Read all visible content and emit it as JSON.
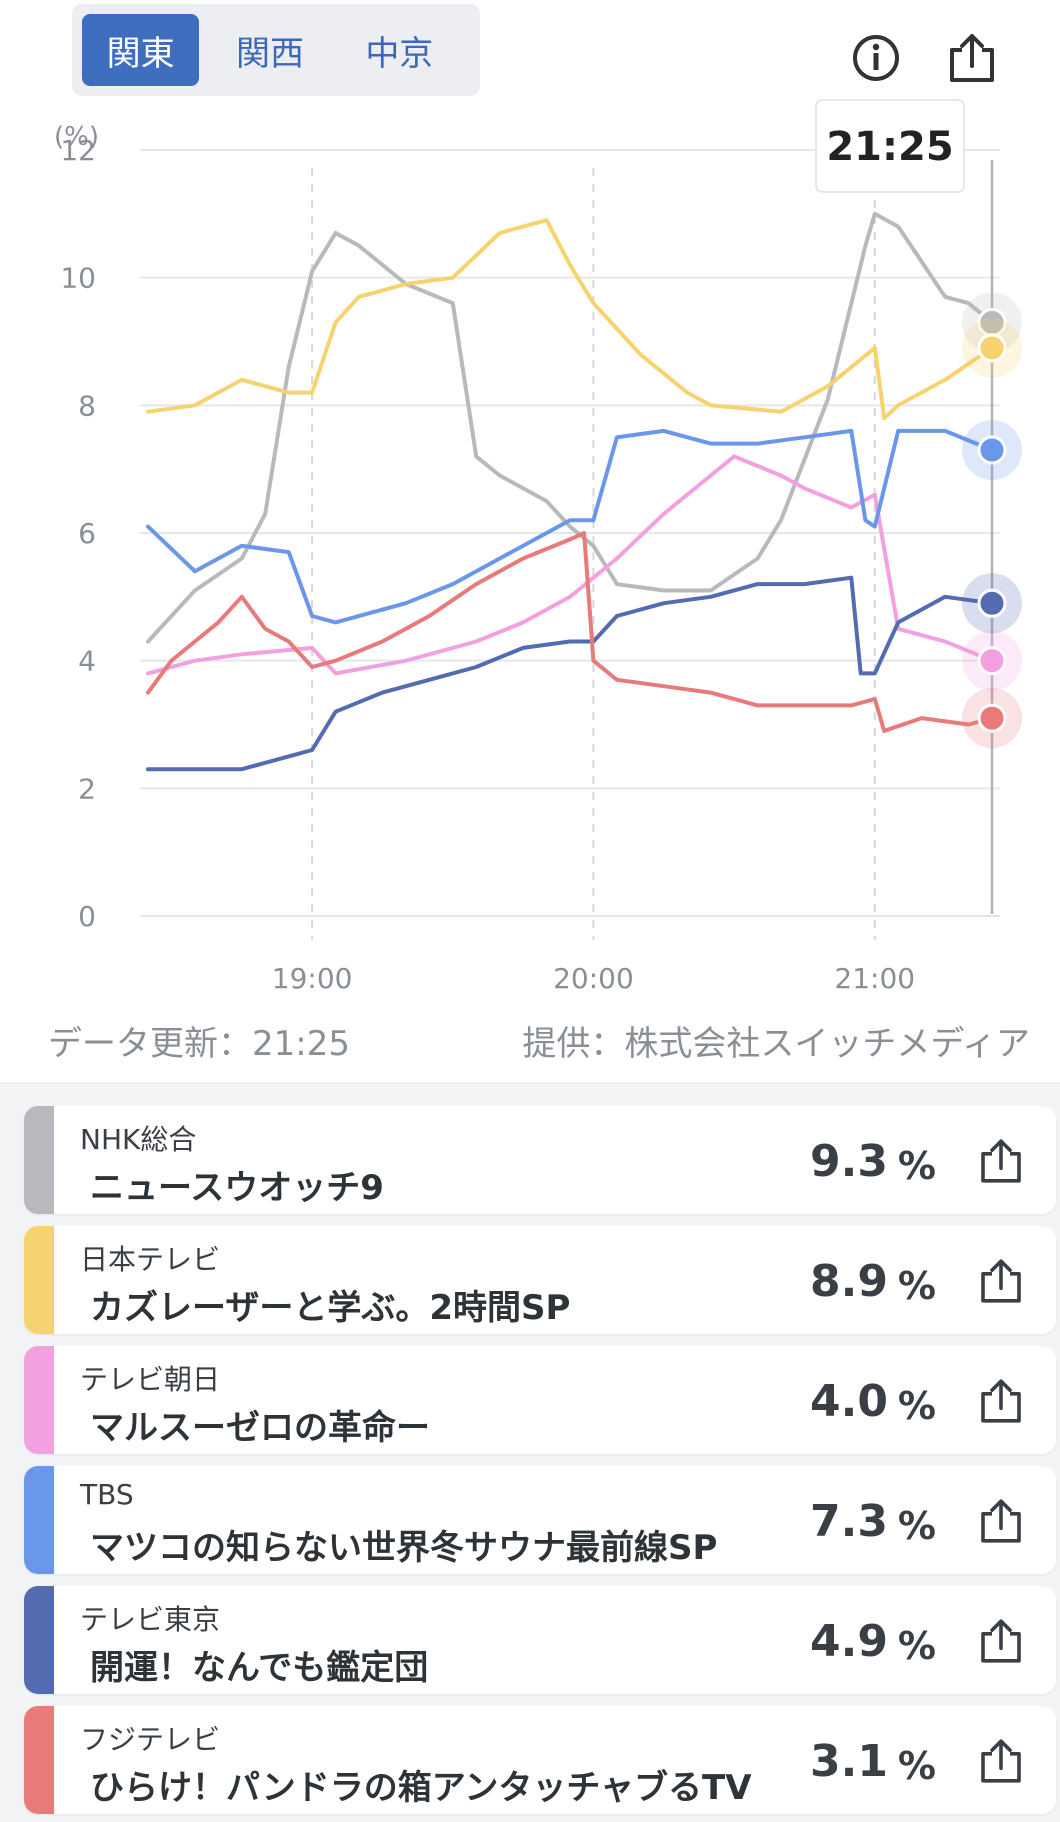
{
  "region_tabs": [
    {
      "label": "関東",
      "active": true
    },
    {
      "label": "関西",
      "active": false
    },
    {
      "label": "中京",
      "active": false
    }
  ],
  "icons": {
    "info": "info-icon",
    "share": "share-icon"
  },
  "tooltip_time": "21:25",
  "meta": {
    "updated": "データ更新：21:25",
    "provider": "提供：株式会社スイッチメディア"
  },
  "chart_data": {
    "type": "line",
    "yunit": "(%)",
    "ylim": [
      0,
      12
    ],
    "yticks": [
      "0",
      "2",
      "4",
      "6",
      "8",
      "10",
      "12"
    ],
    "xlim": [
      "18:25",
      "21:25"
    ],
    "xticks": [
      "19:00",
      "20:00",
      "21:00"
    ],
    "grid": true,
    "series": [
      {
        "color": "#b7b9bd",
        "x": [
          "18:25",
          "18:35",
          "18:45",
          "18:50",
          "18:55",
          "19:00",
          "19:05",
          "19:10",
          "19:20",
          "19:30",
          "19:35",
          "19:40",
          "19:50",
          "19:55",
          "20:00",
          "20:05",
          "20:15",
          "20:25",
          "20:35",
          "20:40",
          "20:50",
          "20:58",
          "21:00",
          "21:05",
          "21:15",
          "21:20",
          "21:25"
        ],
        "y": [
          4.3,
          5.1,
          5.6,
          6.3,
          8.6,
          10.1,
          10.7,
          10.5,
          9.9,
          9.6,
          7.2,
          6.9,
          6.5,
          6.1,
          5.8,
          5.2,
          5.1,
          5.1,
          5.6,
          6.2,
          8.1,
          10.5,
          11.0,
          10.8,
          9.7,
          9.6,
          9.3
        ]
      },
      {
        "color": "#f7d36f",
        "x": [
          "18:25",
          "18:35",
          "18:45",
          "18:55",
          "19:00",
          "19:05",
          "19:10",
          "19:20",
          "19:30",
          "19:40",
          "19:50",
          "19:55",
          "20:00",
          "20:10",
          "20:20",
          "20:25",
          "20:40",
          "20:50",
          "21:00",
          "21:02",
          "21:05",
          "21:15",
          "21:25"
        ],
        "y": [
          7.9,
          8.0,
          8.4,
          8.2,
          8.2,
          9.3,
          9.7,
          9.9,
          10.0,
          10.7,
          10.9,
          10.2,
          9.6,
          8.8,
          8.2,
          8.0,
          7.9,
          8.3,
          8.9,
          7.8,
          8.0,
          8.4,
          8.9
        ]
      },
      {
        "color": "#f2a0df",
        "x": [
          "18:25",
          "18:35",
          "18:45",
          "19:00",
          "19:05",
          "19:20",
          "19:35",
          "19:45",
          "19:55",
          "20:00",
          "20:05",
          "20:15",
          "20:25",
          "20:30",
          "20:40",
          "20:45",
          "20:55",
          "21:00",
          "21:05",
          "21:15",
          "21:25"
        ],
        "y": [
          3.8,
          4.0,
          4.1,
          4.2,
          3.8,
          4.0,
          4.3,
          4.6,
          5.0,
          5.3,
          5.6,
          6.3,
          6.9,
          7.2,
          6.9,
          6.7,
          6.4,
          6.6,
          4.5,
          4.3,
          4.0
        ]
      },
      {
        "color": "#6b97ea",
        "x": [
          "18:25",
          "18:35",
          "18:45",
          "18:55",
          "19:00",
          "19:05",
          "19:20",
          "19:30",
          "19:40",
          "19:50",
          "19:55",
          "20:00",
          "20:05",
          "20:15",
          "20:25",
          "20:35",
          "20:45",
          "20:55",
          "20:58",
          "21:00",
          "21:05",
          "21:15",
          "21:25"
        ],
        "y": [
          6.1,
          5.4,
          5.8,
          5.7,
          4.7,
          4.6,
          4.9,
          5.2,
          5.6,
          6.0,
          6.2,
          6.2,
          7.5,
          7.6,
          7.4,
          7.4,
          7.5,
          7.6,
          6.2,
          6.1,
          7.6,
          7.6,
          7.3
        ]
      },
      {
        "color": "#536bb0",
        "x": [
          "18:25",
          "18:35",
          "18:45",
          "18:55",
          "19:00",
          "19:05",
          "19:15",
          "19:25",
          "19:35",
          "19:45",
          "19:55",
          "20:00",
          "20:05",
          "20:15",
          "20:25",
          "20:35",
          "20:45",
          "20:55",
          "20:57",
          "21:00",
          "21:05",
          "21:15",
          "21:25"
        ],
        "y": [
          2.3,
          2.3,
          2.3,
          2.5,
          2.6,
          3.2,
          3.5,
          3.7,
          3.9,
          4.2,
          4.3,
          4.3,
          4.7,
          4.9,
          5.0,
          5.2,
          5.2,
          5.3,
          3.8,
          3.8,
          4.6,
          5.0,
          4.9
        ]
      },
      {
        "color": "#e87a7a",
        "x": [
          "18:25",
          "18:30",
          "18:40",
          "18:45",
          "18:50",
          "18:55",
          "19:00",
          "19:05",
          "19:15",
          "19:25",
          "19:35",
          "19:45",
          "19:55",
          "19:58",
          "20:00",
          "20:05",
          "20:15",
          "20:25",
          "20:35",
          "20:45",
          "20:55",
          "21:00",
          "21:02",
          "21:10",
          "21:20",
          "21:25"
        ],
        "y": [
          3.5,
          4.0,
          4.6,
          5.0,
          4.5,
          4.3,
          3.9,
          4.0,
          4.3,
          4.7,
          5.2,
          5.6,
          5.9,
          6.0,
          4.0,
          3.7,
          3.6,
          3.5,
          3.3,
          3.3,
          3.3,
          3.4,
          2.9,
          3.1,
          3.0,
          3.1
        ]
      }
    ]
  },
  "channels": [
    {
      "station": "NHK総合",
      "program": "ニュースウオッチ9",
      "rating": "9.3",
      "unit": "%",
      "color": "#b7b9bd"
    },
    {
      "station": "日本テレビ",
      "program": "カズレーザーと学ぶ。2時間SP",
      "rating": "8.9",
      "unit": "%",
      "color": "#f7d36f"
    },
    {
      "station": "テレビ朝日",
      "program": "マルスーゼロの革命ー",
      "rating": "4.0",
      "unit": "%",
      "color": "#f2a0df"
    },
    {
      "station": "TBS",
      "program": "マツコの知らない世界冬サウナ最前線SP",
      "rating": "7.3",
      "unit": "%",
      "color": "#6b97ea"
    },
    {
      "station": "テレビ東京",
      "program": "開運！なんでも鑑定団",
      "rating": "4.9",
      "unit": "%",
      "color": "#536bb0"
    },
    {
      "station": "フジテレビ",
      "program": "ひらけ！パンドラの箱アンタッチャブるTV",
      "rating": "3.1",
      "unit": "%",
      "color": "#e87a7a"
    }
  ]
}
